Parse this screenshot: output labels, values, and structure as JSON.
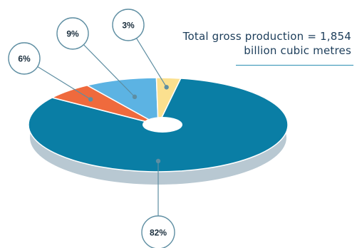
{
  "chart_data": {
    "type": "pie",
    "style": "3d-donut",
    "values": [
      82,
      6,
      9,
      3
    ],
    "labels": [
      "82%",
      "6%",
      "9%",
      "3%"
    ],
    "colors": [
      "#0a7ea5",
      "#ef6a3d",
      "#5cb3e3",
      "#fbe08f"
    ],
    "annotation": {
      "line1": "Total gross production = 1,854",
      "line2": "billion cubic metres"
    }
  },
  "style": {
    "shadow_color": "#b8c8d2",
    "callout_stroke": "#5e8ea2",
    "label_color": "#1a2e3d",
    "underline_color": "#2b8fb3"
  }
}
